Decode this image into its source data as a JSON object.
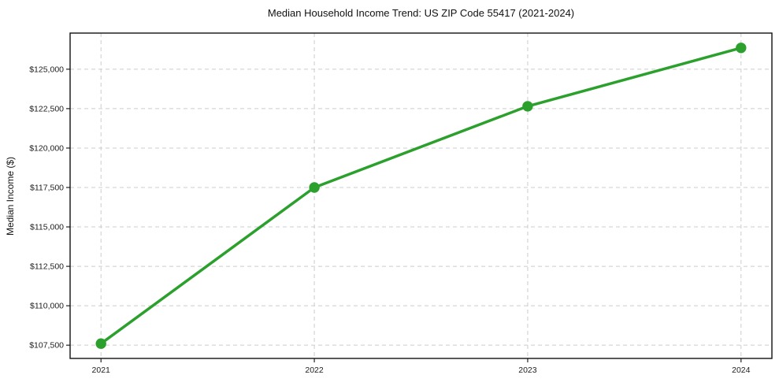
{
  "chart_data": {
    "type": "line",
    "title": "Median Household Income Trend: US ZIP Code 55417 (2021-2024)",
    "xlabel": "",
    "ylabel": "Median Income ($)",
    "x": [
      2021,
      2022,
      2023,
      2024
    ],
    "categories": [
      "2021",
      "2022",
      "2023",
      "2024"
    ],
    "series": [
      {
        "name": "Median Household Income",
        "values": [
          107600,
          117500,
          122650,
          126350
        ],
        "color": "#2ca02c",
        "marker": "circle"
      }
    ],
    "ylim": [
      106660,
      127290
    ],
    "yticks": [
      107500,
      110000,
      112500,
      115000,
      117500,
      120000,
      122500,
      125000
    ],
    "ytick_labels": [
      "$107,500",
      "$110,000",
      "$112,500",
      "$115,000",
      "$117,500",
      "$120,000",
      "$122,500",
      "$125,000"
    ],
    "grid": true,
    "grid_style": "dashed",
    "grid_color": "#cccccc",
    "axis_color": "#111111",
    "tick_color": "#222222",
    "background": "#ffffff",
    "legend": "none"
  }
}
